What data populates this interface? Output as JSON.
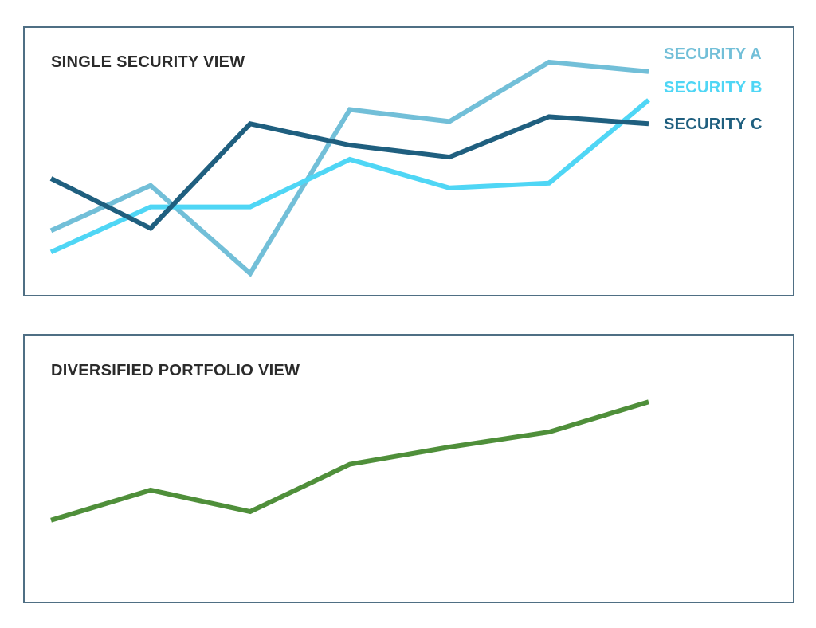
{
  "chart_data": [
    {
      "type": "line",
      "title": "SINGLE SECURITY VIEW",
      "x": [
        1,
        2,
        3,
        4,
        5,
        6,
        7
      ],
      "ylim": [
        0,
        100
      ],
      "grid": false,
      "legend": "top-right",
      "series": [
        {
          "name": "SECURITY A",
          "color": "#72bfd8",
          "values": [
            22,
            41,
            4,
            73,
            68,
            93,
            89
          ]
        },
        {
          "name": "SECURITY B",
          "color": "#4fd6f5",
          "values": [
            13,
            32,
            32,
            52,
            40,
            42,
            77
          ]
        },
        {
          "name": "SECURITY C",
          "color": "#1f5f7f",
          "values": [
            44,
            23,
            67,
            58,
            53,
            70,
            67
          ]
        }
      ]
    },
    {
      "type": "line",
      "title": "DIVERSIFIED PORTFOLIO VIEW",
      "x": [
        1,
        2,
        3,
        4,
        5,
        6,
        7
      ],
      "ylim": [
        0,
        100
      ],
      "grid": false,
      "series": [
        {
          "color": "#4f8f3a",
          "values": [
            26,
            40,
            30,
            52,
            60,
            67,
            81
          ]
        }
      ]
    }
  ]
}
